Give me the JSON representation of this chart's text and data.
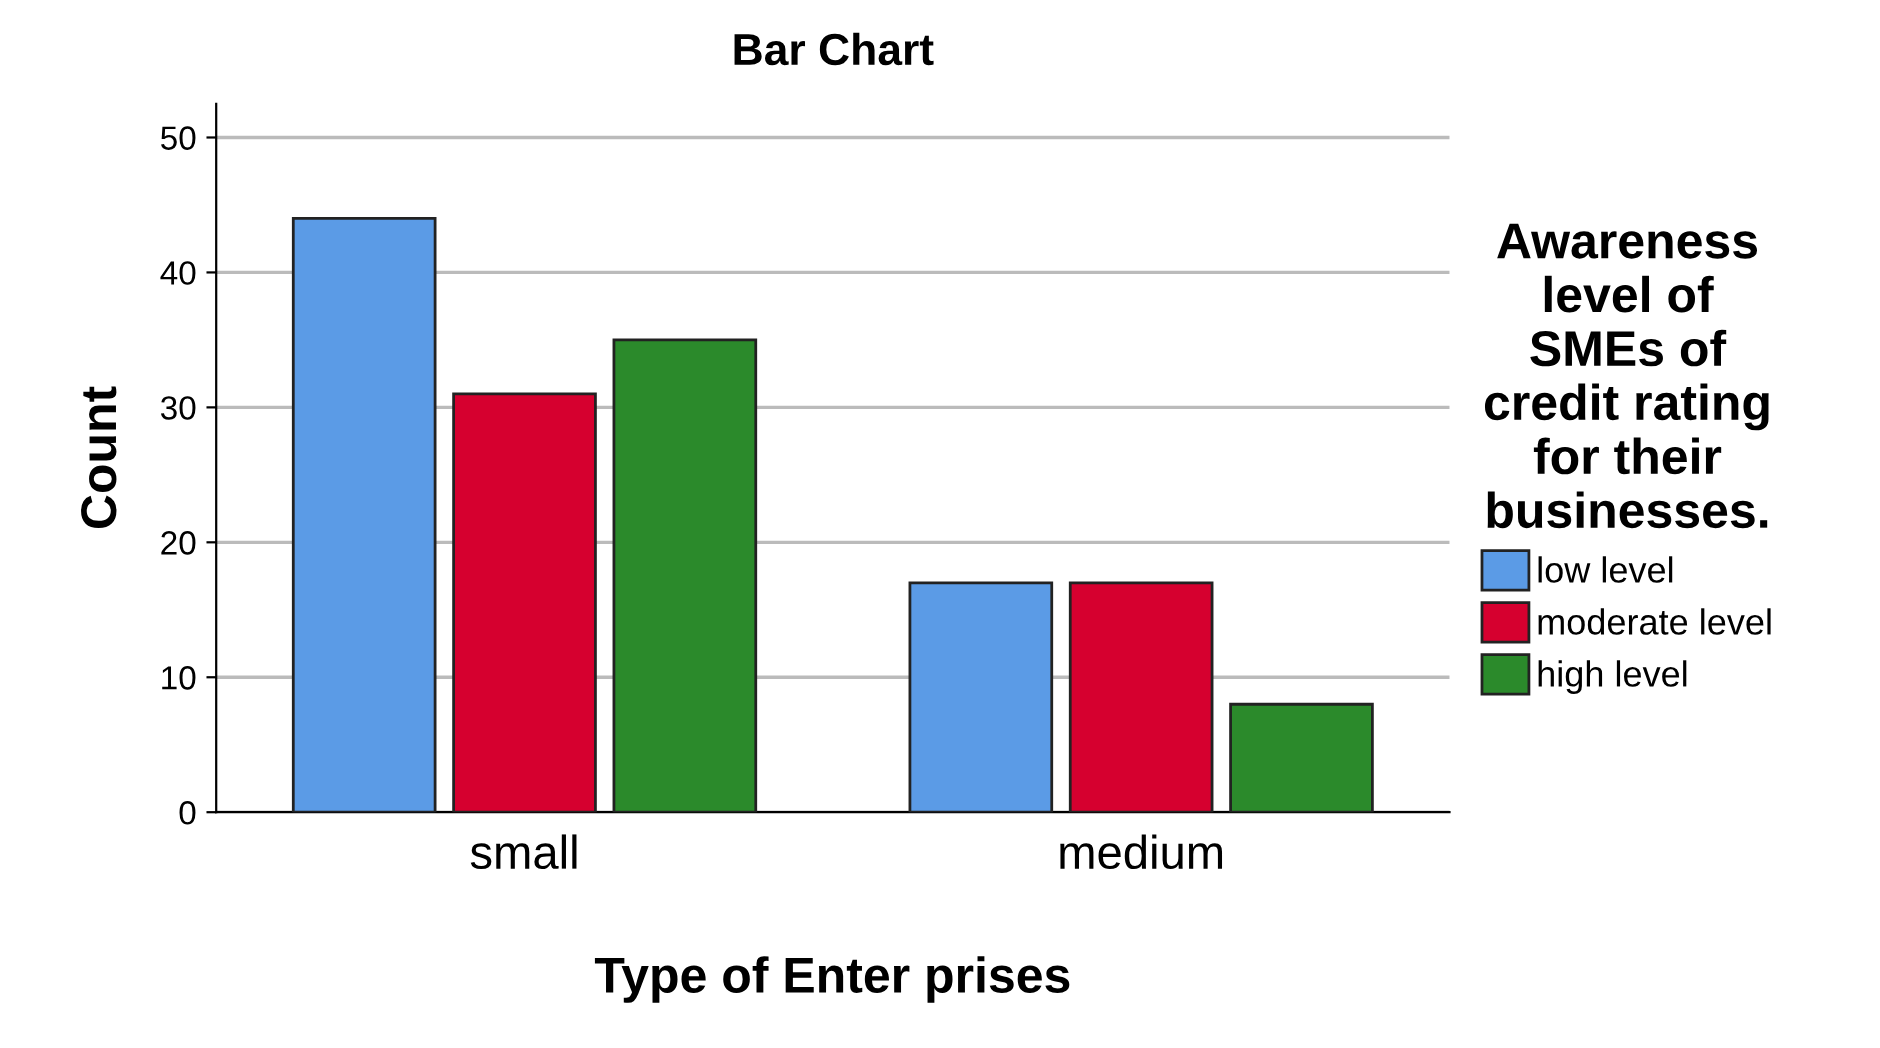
{
  "chart_data": {
    "type": "bar",
    "title": "Bar Chart",
    "xlabel": "Type of Enter prises",
    "ylabel": "Count",
    "legend_title": "Awareness\nlevel of\nSMEs of\ncredit rating\nfor their\nbusinesses.",
    "categories": [
      "small",
      "medium"
    ],
    "series": [
      {
        "name": "low level",
        "color": "#5b9be6",
        "values": [
          44,
          17
        ]
      },
      {
        "name": "moderate level",
        "color": "#d6002f",
        "values": [
          31,
          17
        ]
      },
      {
        "name": "high level",
        "color": "#2b8a2b",
        "values": [
          35,
          8
        ]
      }
    ],
    "ylim": [
      0,
      52.5
    ],
    "yticks": [
      0,
      10,
      20,
      30,
      40,
      50
    ],
    "grid": "y",
    "legend": "right"
  }
}
